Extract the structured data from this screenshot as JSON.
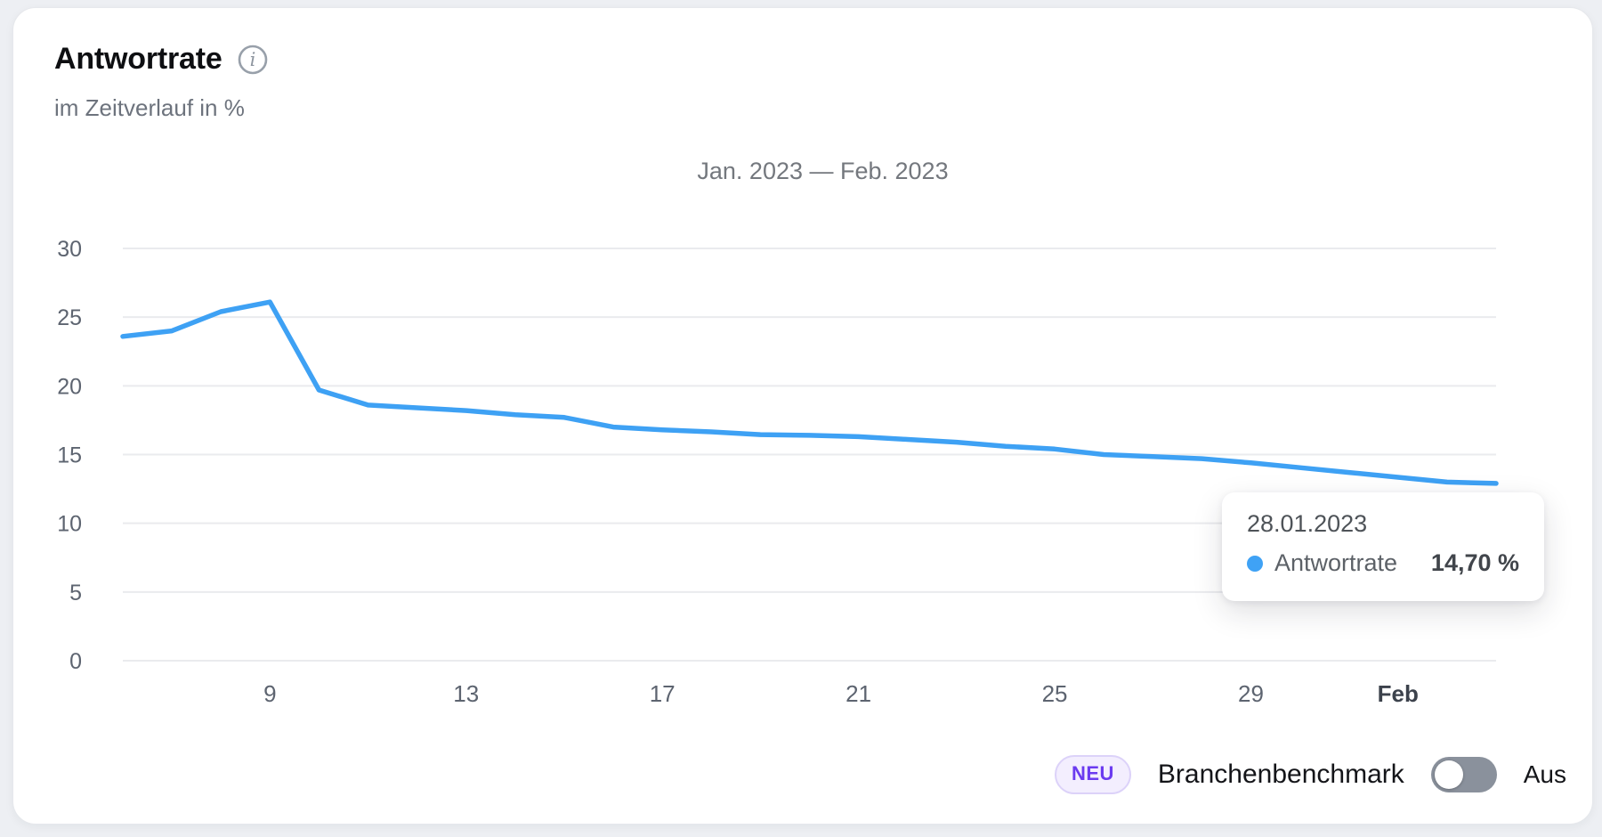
{
  "header": {
    "title": "Antwortrate",
    "subtitle": "im Zeitverlauf in %",
    "info_icon": "info-circle"
  },
  "chart_data": {
    "type": "line",
    "title": "Antwortrate",
    "subtitle": "im Zeitverlauf in %",
    "range_label": "Jan. 2023 — Feb. 2023",
    "unit": "%",
    "ylim": [
      0,
      30
    ],
    "y_ticks": [
      0,
      5,
      10,
      15,
      20,
      25,
      30
    ],
    "grid": true,
    "legend": "none",
    "x_ticks": [
      {
        "label": "9",
        "index": 3,
        "bold": false
      },
      {
        "label": "13",
        "index": 7,
        "bold": false
      },
      {
        "label": "17",
        "index": 11,
        "bold": false
      },
      {
        "label": "21",
        "index": 15,
        "bold": false
      },
      {
        "label": "25",
        "index": 19,
        "bold": false
      },
      {
        "label": "29",
        "index": 23,
        "bold": false
      },
      {
        "label": "Feb",
        "index": 26,
        "bold": true
      }
    ],
    "series": [
      {
        "name": "Antwortrate",
        "color": "#3ea1f4",
        "dates": [
          "06.01.2023",
          "07.01.2023",
          "08.01.2023",
          "09.01.2023",
          "10.01.2023",
          "11.01.2023",
          "12.01.2023",
          "13.01.2023",
          "14.01.2023",
          "15.01.2023",
          "16.01.2023",
          "17.01.2023",
          "18.01.2023",
          "19.01.2023",
          "20.01.2023",
          "21.01.2023",
          "22.01.2023",
          "23.01.2023",
          "24.01.2023",
          "25.01.2023",
          "26.01.2023",
          "27.01.2023",
          "28.01.2023",
          "29.01.2023",
          "30.01.2023",
          "31.01.2023",
          "01.02.2023",
          "02.02.2023",
          "03.02.2023"
        ],
        "values": [
          23.6,
          24.0,
          25.4,
          26.1,
          19.7,
          18.6,
          18.4,
          18.2,
          17.9,
          17.7,
          17.0,
          16.8,
          16.65,
          16.45,
          16.4,
          16.3,
          16.1,
          15.9,
          15.6,
          15.4,
          15.0,
          14.85,
          14.7,
          14.4,
          14.05,
          13.7,
          13.35,
          13.0,
          12.9
        ]
      }
    ]
  },
  "tooltip": {
    "date": "28.01.2023",
    "series": "Antwortrate",
    "value": "14,70 %",
    "dot_color": "#3fa2f5"
  },
  "benchmark": {
    "badge": "NEU",
    "label": "Branchenbenchmark",
    "state": "Aus",
    "enabled": false
  },
  "colors": {
    "line": "#3ea1f4",
    "grid": "#eaebee",
    "axis_text": "#5d6470",
    "axis_text_bold": "#3c424c",
    "card_bg": "#ffffff",
    "page_bg": "#edeff3",
    "badge_text": "#6b3bf0",
    "badge_bg": "#f3eefe"
  }
}
